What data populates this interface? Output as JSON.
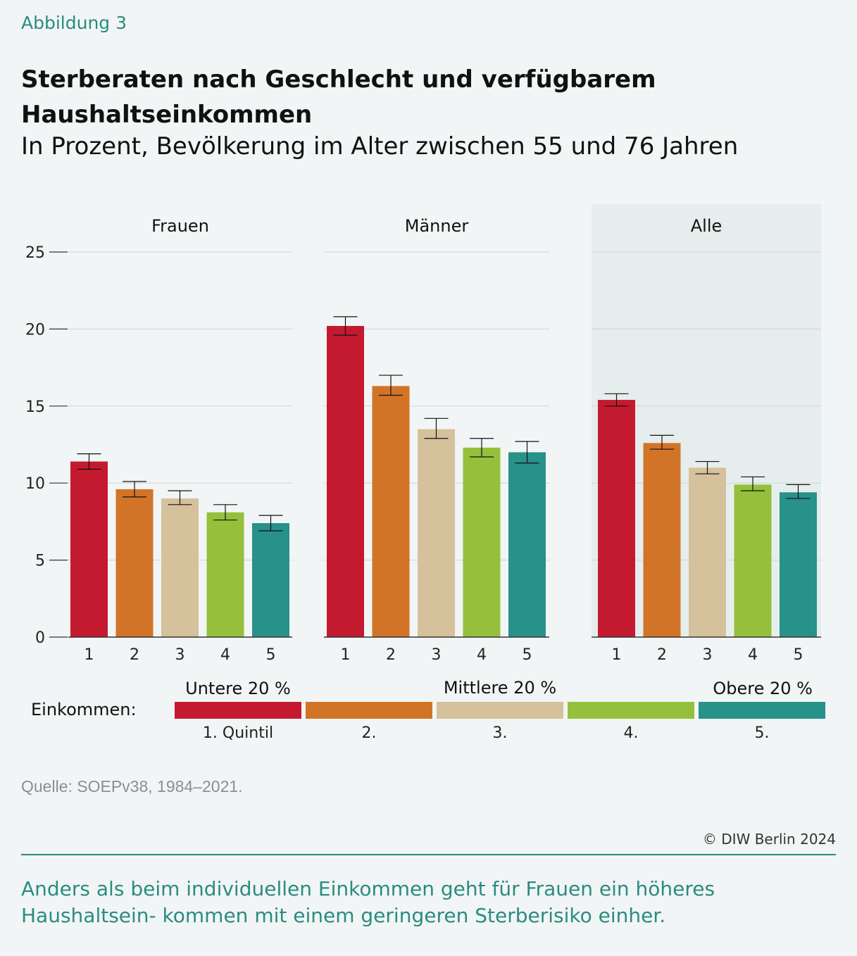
{
  "figure_label": "Abbildung 3",
  "title": "Sterberaten nach Geschlecht und verfügbarem Haushaltseinkommen",
  "subtitle": "In Prozent, Bevölkerung im Alter zwischen 55 und 76 Jahren",
  "chart_data": {
    "type": "bar",
    "ylim": [
      0,
      25
    ],
    "yticks": [
      0,
      5,
      10,
      15,
      20,
      25
    ],
    "grid": true,
    "categories": [
      "1",
      "2",
      "3",
      "4",
      "5"
    ],
    "colors": [
      "#c41a30",
      "#d27427",
      "#d5c19c",
      "#95c03c",
      "#27918a"
    ],
    "panels": [
      {
        "name": "Frauen",
        "highlighted": false,
        "values": [
          11.4,
          9.6,
          9.0,
          8.1,
          7.4
        ],
        "ci_low": [
          10.9,
          9.1,
          8.6,
          7.6,
          6.9
        ],
        "ci_high": [
          11.9,
          10.1,
          9.5,
          8.6,
          7.9
        ]
      },
      {
        "name": "Männer",
        "highlighted": false,
        "values": [
          20.2,
          16.3,
          13.5,
          12.3,
          12.0
        ],
        "ci_low": [
          19.6,
          15.7,
          12.9,
          11.7,
          11.3
        ],
        "ci_high": [
          20.8,
          17.0,
          14.2,
          12.9,
          12.7
        ]
      },
      {
        "name": "Alle",
        "highlighted": true,
        "values": [
          15.4,
          12.6,
          11.0,
          9.9,
          9.4
        ],
        "ci_low": [
          15.0,
          12.2,
          10.6,
          9.5,
          9.0
        ],
        "ci_high": [
          15.8,
          13.1,
          11.4,
          10.4,
          9.9
        ]
      }
    ],
    "legend": {
      "label": "Einkommen:",
      "group_labels": [
        "Untere 20 %",
        "Mittlere 20 %",
        "Obere 20 %"
      ],
      "items": [
        "1. Quintil",
        "2.",
        "3.",
        "4.",
        "5."
      ]
    },
    "panel_bg": "#e6eeed",
    "grid_color": "#cfd3d3"
  },
  "source": "Quelle: SOEPv38, 1984–2021.",
  "copyright": "© DIW Berlin 2024",
  "caption": "Anders als beim individuellen Einkommen geht für Frauen ein höheres Haushaltsein- kommen mit einem geringeren Sterberisiko einher."
}
